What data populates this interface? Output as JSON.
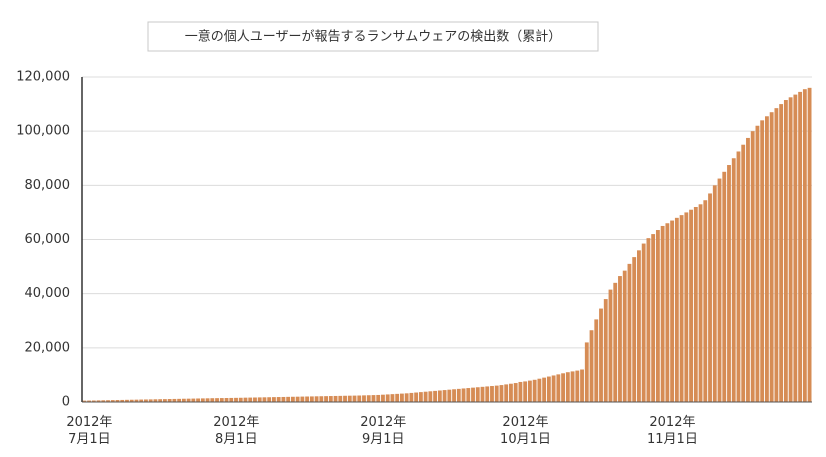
{
  "chart_data": {
    "type": "bar",
    "title": "一意の個人ユーザーが報告するランサムウェアの検出数（累計）",
    "categories": [
      "2012年\n7月1日",
      null,
      null,
      null,
      null,
      null,
      null,
      null,
      null,
      null,
      null,
      null,
      null,
      null,
      null,
      null,
      null,
      null,
      null,
      null,
      null,
      null,
      null,
      null,
      null,
      null,
      null,
      null,
      null,
      null,
      null,
      "2012年\n8月1日",
      null,
      null,
      null,
      null,
      null,
      null,
      null,
      null,
      null,
      null,
      null,
      null,
      null,
      null,
      null,
      null,
      null,
      null,
      null,
      null,
      null,
      null,
      null,
      null,
      null,
      null,
      null,
      null,
      null,
      null,
      "2012年\n9月1日",
      null,
      null,
      null,
      null,
      null,
      null,
      null,
      null,
      null,
      null,
      null,
      null,
      null,
      null,
      null,
      null,
      null,
      null,
      null,
      null,
      null,
      null,
      null,
      null,
      null,
      null,
      null,
      null,
      null,
      "2012年\n10月1日",
      null,
      null,
      null,
      null,
      null,
      null,
      null,
      null,
      null,
      null,
      null,
      null,
      null,
      null,
      null,
      null,
      null,
      null,
      null,
      null,
      null,
      null,
      null,
      null,
      null,
      null,
      null,
      null,
      null,
      null,
      "2012年\n11月1日",
      null,
      null,
      null,
      null,
      null,
      null,
      null,
      null,
      null,
      null,
      null,
      null,
      null,
      null,
      null,
      null,
      null,
      null,
      null,
      null,
      null,
      null,
      null,
      null,
      null,
      null,
      null,
      null,
      null,
      null
    ],
    "values": [
      500,
      530,
      560,
      600,
      630,
      660,
      700,
      730,
      760,
      800,
      830,
      860,
      900,
      930,
      960,
      1000,
      1030,
      1060,
      1100,
      1130,
      1160,
      1200,
      1230,
      1260,
      1300,
      1330,
      1360,
      1400,
      1420,
      1450,
      1470,
      1500,
      1530,
      1560,
      1600,
      1630,
      1660,
      1700,
      1730,
      1760,
      1800,
      1830,
      1860,
      1900,
      1930,
      1960,
      2000,
      2030,
      2060,
      2100,
      2130,
      2160,
      2200,
      2230,
      2260,
      2300,
      2330,
      2360,
      2400,
      2450,
      2500,
      2550,
      2600,
      2700,
      2800,
      2900,
      3000,
      3100,
      3200,
      3350,
      3500,
      3650,
      3800,
      3950,
      4100,
      4250,
      4400,
      4550,
      4700,
      4850,
      5000,
      5150,
      5300,
      5450,
      5600,
      5750,
      5900,
      6050,
      6250,
      6500,
      6750,
      7000,
      7400,
      7600,
      7900,
      8200,
      8600,
      9000,
      9400,
      9800,
      10200,
      10600,
      11000,
      11300,
      11600,
      12000,
      22000,
      26500,
      30500,
      34500,
      38000,
      41500,
      44000,
      46500,
      48500,
      51000,
      53500,
      56000,
      58500,
      60500,
      62000,
      63500,
      65000,
      66000,
      67000,
      68000,
      69000,
      70000,
      71000,
      72000,
      73000,
      74500,
      77000,
      80000,
      82500,
      85000,
      87500,
      90000,
      92500,
      95000,
      97500,
      100000,
      102000,
      104000,
      105500,
      107000,
      108500,
      110000,
      111500,
      112500,
      113500,
      114500,
      115500,
      116000
    ],
    "color": "#d68c55",
    "ylim": [
      0,
      120000
    ],
    "yticks": [
      0,
      {
        "value": 20000,
        "label": "20,000"
      },
      {
        "value": 40000,
        "label": "40,000"
      },
      {
        "value": 60000,
        "label": "60,000"
      },
      {
        "value": 80000,
        "label": "80,000"
      },
      {
        "value": 100000,
        "label": "100,000"
      },
      {
        "value": 120000,
        "label": "120,000"
      }
    ],
    "grid": true
  }
}
